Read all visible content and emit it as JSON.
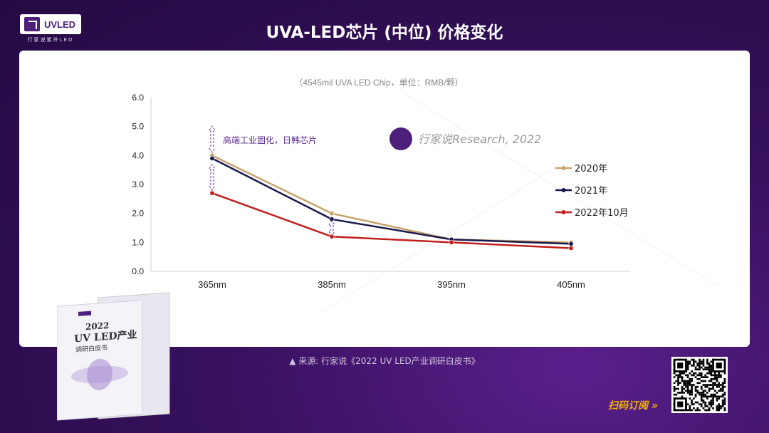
{
  "header": {
    "logo_text": "UVLED",
    "logo_subtitle": "行家说紫外LED",
    "title": "UVA-LED芯片 (中位) 价格变化"
  },
  "footer": {
    "source": "▲ 来源: 行家说《2022 UV LED产业调研白皮书》",
    "scan_label": "扫码订阅 »"
  },
  "book": {
    "year": "2022",
    "line1": "UV LED产业",
    "line2": "调研白皮书"
  },
  "chart_data": {
    "type": "line",
    "subtitle": "（4545mil UVA LED Chip，单位：RMB/颗）",
    "categories": [
      "365nm",
      "385nm",
      "395nm",
      "405nm"
    ],
    "ylim": [
      0,
      6
    ],
    "yticks": [
      "0.0",
      "1.0",
      "2.0",
      "3.0",
      "4.0",
      "5.0",
      "6.0"
    ],
    "series": [
      {
        "name": "2020年",
        "color": "#c8a46e",
        "values": [
          4.0,
          2.0,
          1.1,
          1.0
        ]
      },
      {
        "name": "2021年",
        "color": "#1a1a4e",
        "values": [
          3.9,
          1.8,
          1.1,
          0.95
        ]
      },
      {
        "name": "2022年10月",
        "color": "#c0201e",
        "values": [
          2.7,
          1.2,
          1.0,
          0.8
        ]
      }
    ],
    "annotation": "高端工业固化，日韩芯片",
    "watermark": "行家说Research, 2022",
    "legend": "right",
    "grid": false
  }
}
